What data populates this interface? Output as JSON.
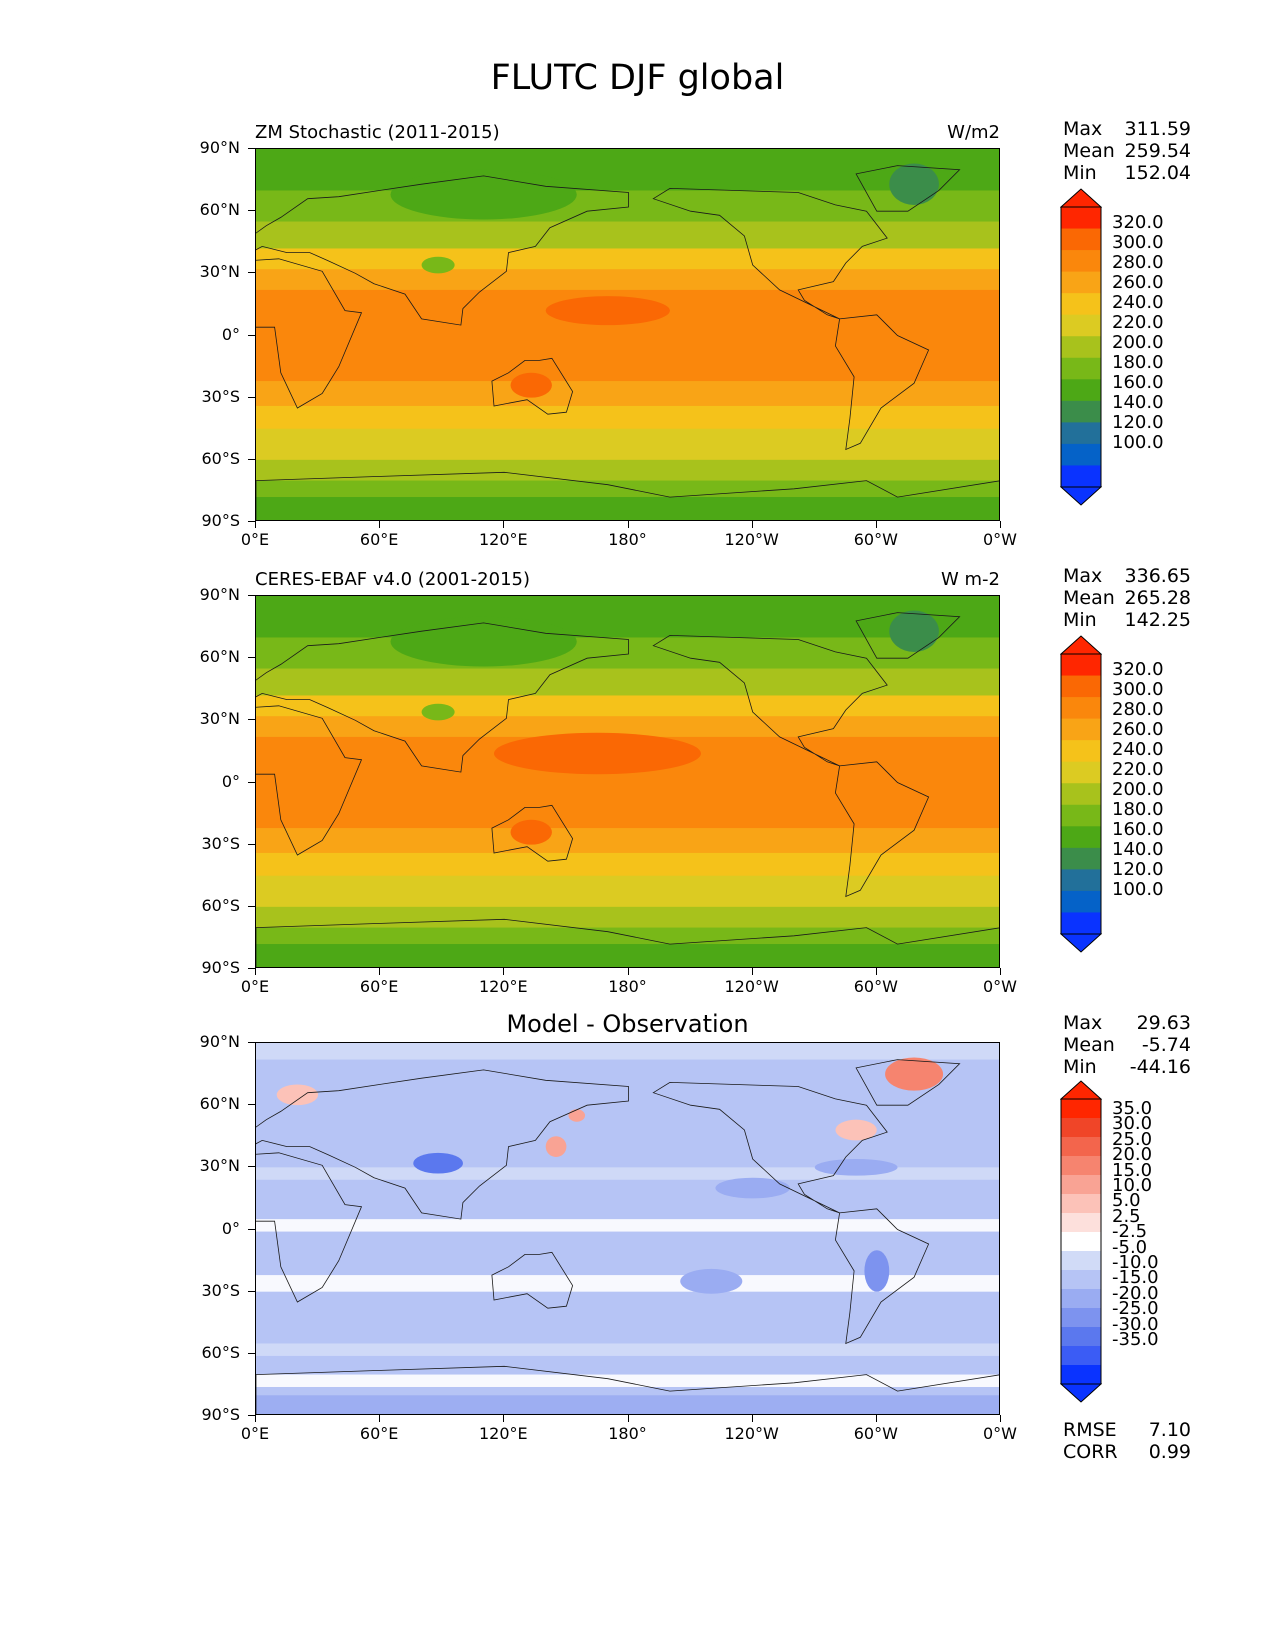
{
  "figure": {
    "title": "FLUTC DJF global"
  },
  "lat_ticks": [
    "90°N",
    "60°N",
    "30°N",
    "0°",
    "30°S",
    "60°S",
    "90°S"
  ],
  "lon_ticks": [
    "0°E",
    "60°E",
    "120°E",
    "180°",
    "120°W",
    "60°W",
    "0°W"
  ],
  "panels": [
    {
      "title_left": "ZM Stochastic (2011-2015)",
      "title_right": "W/m2",
      "stats": [
        {
          "label": "Max",
          "value": "311.59"
        },
        {
          "label": "Mean",
          "value": "259.54"
        },
        {
          "label": "Min",
          "value": "152.04"
        }
      ],
      "colorbar_labels": [
        "320.0",
        "300.0",
        "280.0",
        "260.0",
        "240.0",
        "220.0",
        "200.0",
        "180.0",
        "160.0",
        "140.0",
        "120.0",
        "100.0"
      ]
    },
    {
      "title_left": "CERES-EBAF v4.0 (2001-2015)",
      "title_right": "W m-2",
      "stats": [
        {
          "label": "Max",
          "value": "336.65"
        },
        {
          "label": "Mean",
          "value": "265.28"
        },
        {
          "label": "Min",
          "value": "142.25"
        }
      ],
      "colorbar_labels": [
        "320.0",
        "300.0",
        "280.0",
        "260.0",
        "240.0",
        "220.0",
        "200.0",
        "180.0",
        "160.0",
        "140.0",
        "120.0",
        "100.0"
      ]
    },
    {
      "title_center": "Model - Observation",
      "stats": [
        {
          "label": "Max",
          "value": "29.63"
        },
        {
          "label": "Mean",
          "value": "-5.74"
        },
        {
          "label": "Min",
          "value": "-44.16"
        }
      ],
      "colorbar_labels": [
        "35.0",
        "30.0",
        "25.0",
        "20.0",
        "15.0",
        "10.0",
        "5.0",
        "2.5",
        "-2.5",
        "-5.0",
        "-10.0",
        "-15.0",
        "-20.0",
        "-25.0",
        "-30.0",
        "-35.0"
      ],
      "bottom_stats": [
        {
          "label": "RMSE",
          "value": "7.10"
        },
        {
          "label": "CORR",
          "value": "0.99"
        }
      ]
    }
  ],
  "colors": {
    "abs_scale": [
      "#0a33ff",
      "#0562c8",
      "#22709a",
      "#3b8d4a",
      "#4da816",
      "#78b818",
      "#a8c21c",
      "#dccb22",
      "#f5c21a",
      "#f9a416",
      "#fa870c",
      "#fa6804",
      "#ff2600"
    ],
    "diff_scale": [
      "#0a33ff",
      "#3b5cf5",
      "#5b78ee",
      "#7d93ef",
      "#9aacf2",
      "#b6c4f5",
      "#d1dbf7",
      "#ffffff",
      "#fde0dc",
      "#fcc2b8",
      "#f9a394",
      "#f6846f",
      "#f3654c",
      "#f04528",
      "#ff2600"
    ]
  }
}
